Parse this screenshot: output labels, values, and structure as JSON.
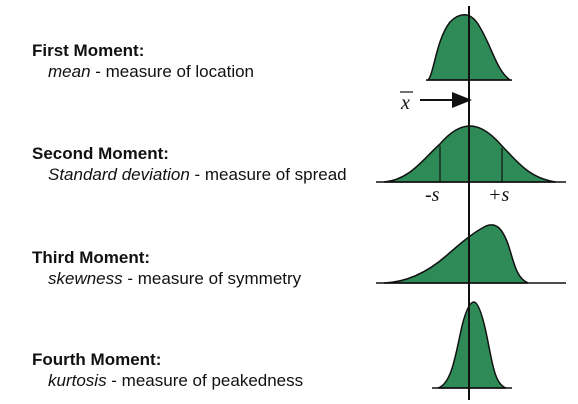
{
  "moments": [
    {
      "title": "First Moment:",
      "term": "mean",
      "rest": " - measure of location"
    },
    {
      "title": "Second Moment:",
      "term": "Standard deviation",
      "rest": " - measure of spread"
    },
    {
      "title": "Third Moment:",
      "term": "skewness",
      "rest": " - measure of symmetry"
    },
    {
      "title": "Fourth Moment:",
      "term": "kurtosis",
      "rest": " - measure of peakedness"
    }
  ],
  "figure": {
    "mean_symbol": "x",
    "minus_s_label": "-s",
    "plus_s_label": "+s"
  },
  "colors": {
    "curve_fill": "#2e8b57",
    "curve_stroke": "#111111",
    "text": "#111111"
  }
}
